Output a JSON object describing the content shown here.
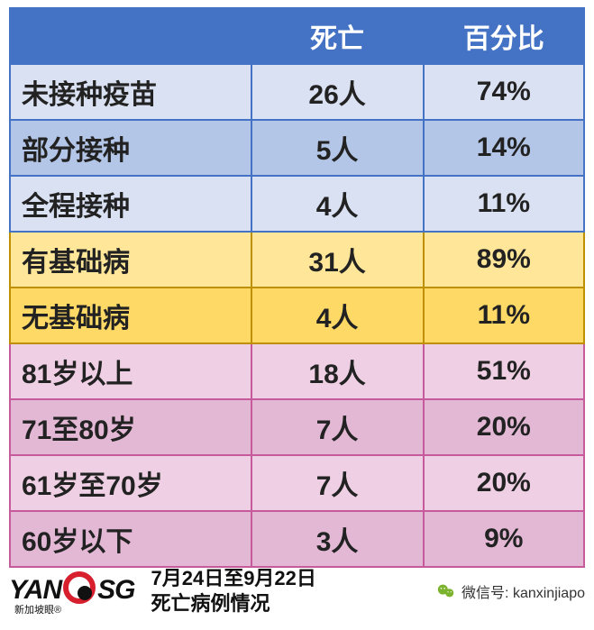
{
  "table": {
    "header": {
      "bg": "#4472c4",
      "border": "#4472c4",
      "col0": "",
      "col1": "死亡",
      "col2": "百分比"
    },
    "sections": [
      {
        "border": "#4472c4",
        "rows": [
          {
            "bg": "#d9e1f2",
            "label": "未接种疫苗",
            "val1": "26人",
            "val2": "74%"
          },
          {
            "bg": "#b4c6e7",
            "label": "部分接种",
            "val1": "5人",
            "val2": "14%"
          },
          {
            "bg": "#d9e1f2",
            "label": "全程接种",
            "val1": "4人",
            "val2": "11%"
          }
        ]
      },
      {
        "border": "#bf8f00",
        "rows": [
          {
            "bg": "#ffe699",
            "label": "有基础病",
            "val1": "31人",
            "val2": "89%"
          },
          {
            "bg": "#ffd966",
            "label": "无基础病",
            "val1": "4人",
            "val2": "11%"
          }
        ]
      },
      {
        "border": "#c65a9c",
        "rows": [
          {
            "bg": "#efcfe3",
            "label": "81岁以上",
            "val1": "18人",
            "val2": "51%"
          },
          {
            "bg": "#e2b8d5",
            "label": "71至80岁",
            "val1": "7人",
            "val2": "20%"
          },
          {
            "bg": "#efcfe3",
            "label": "61岁至70岁",
            "val1": "7人",
            "val2": "20%"
          },
          {
            "bg": "#e2b8d5",
            "label": "60岁以下",
            "val1": "3人",
            "val2": "9%"
          }
        ]
      }
    ],
    "text_color": "#222222"
  },
  "logo": {
    "yan": "YAN",
    "sg": "SG",
    "sub": "新加坡眼®"
  },
  "caption": {
    "line1": "7月24日至9月22日",
    "line2": "死亡病例情况"
  },
  "wechat": {
    "label": "微信号: kanxinjiapo"
  }
}
